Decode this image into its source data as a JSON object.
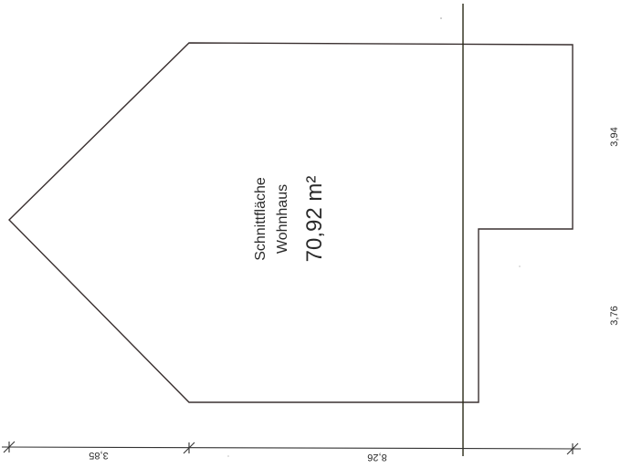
{
  "area": {
    "label_line1": "Schnittfläche",
    "label_line2": "Wohnhaus",
    "value": "70,92 m²"
  },
  "dimensions": {
    "right_upper": "3,94",
    "right_lower": "3,76",
    "bottom_left": "3,85",
    "bottom_right": "8,26"
  },
  "colors": {
    "outline": "#3a3030",
    "section_line": "#2a2a18",
    "text": "#2a2a2a"
  }
}
